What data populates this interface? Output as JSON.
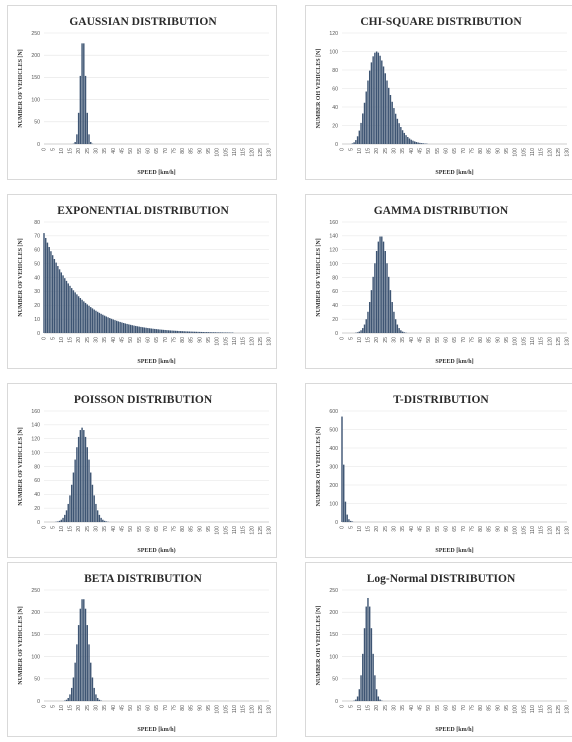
{
  "chart_data": [
    {
      "type": "bar",
      "title": "GAUSSIAN DISTRIBUTION",
      "xlabel": "SPEED [km/h]",
      "ylabel": "NUMBER OF VEHICLES [N]",
      "ylim": [
        0,
        250
      ],
      "yticks": [
        0,
        50,
        100,
        150,
        200,
        250
      ],
      "x_min": 0,
      "x_max": 130,
      "x_ticks": [
        "0",
        "5",
        "10",
        "15",
        "20",
        "25",
        "30",
        "35",
        "40",
        "45",
        "50",
        "55",
        "60",
        "65",
        "70",
        "75",
        "80",
        "85",
        "90",
        "95",
        "100",
        "105",
        "110",
        "115",
        "120",
        "125",
        "130"
      ],
      "dist": {
        "kind": "gauss",
        "mu": 22.5,
        "sigma": 1.6,
        "peak": 238
      }
    },
    {
      "type": "bar",
      "title": "CHI-SQUARE DISTRIBUTION",
      "xlabel": "SPEED [km/h]",
      "ylabel": "NUMBER OH VEHICLES [N]",
      "ylim": [
        0,
        120
      ],
      "yticks": [
        0,
        20,
        40,
        60,
        80,
        100,
        120
      ],
      "x_min": 0,
      "x_max": 130,
      "x_ticks": [
        "0",
        "5",
        "10",
        "15",
        "20",
        "25",
        "30",
        "35",
        "40",
        "45",
        "50",
        "55",
        "60",
        "65",
        "70",
        "75",
        "80",
        "85",
        "90",
        "95",
        "100",
        "105",
        "110",
        "115",
        "120",
        "125",
        "130"
      ],
      "dist": {
        "kind": "chisq",
        "k": 22,
        "peak": 100
      }
    },
    {
      "type": "bar",
      "title": "EXPONENTIAL DISTRIBUTION",
      "xlabel": "SPEED [km/h]",
      "ylabel": "NUMBER OF VEHICLES [N]",
      "ylim": [
        0,
        80
      ],
      "yticks": [
        0,
        10,
        20,
        30,
        40,
        50,
        60,
        70,
        80
      ],
      "x_min": 0,
      "x_max": 130,
      "x_ticks": [
        "0",
        "5",
        "10",
        "15",
        "20",
        "25",
        "30",
        "35",
        "40",
        "45",
        "50",
        "55",
        "60",
        "65",
        "70",
        "75",
        "80",
        "85",
        "90",
        "95",
        "100",
        "105",
        "110",
        "115",
        "120",
        "125",
        "130"
      ],
      "dist": {
        "kind": "exp",
        "a": 72,
        "rate": 0.05
      }
    },
    {
      "type": "bar",
      "title": "GAMMA DISTRIBUTION",
      "xlabel": "SPEED [km/h]",
      "ylabel": "NUMBER OF VEHICLES [N]",
      "ylim": [
        0,
        160
      ],
      "yticks": [
        0,
        20,
        40,
        60,
        80,
        100,
        120,
        140,
        160
      ],
      "x_min": 0,
      "x_max": 130,
      "x_ticks": [
        "0",
        "5",
        "10",
        "15",
        "20",
        "25",
        "30",
        "35",
        "40",
        "45",
        "50",
        "55",
        "60",
        "65",
        "70",
        "75",
        "80",
        "85",
        "90",
        "95",
        "100",
        "105",
        "110",
        "115",
        "120",
        "125",
        "130"
      ],
      "dist": {
        "kind": "gauss",
        "mu": 22.5,
        "sigma": 4.3,
        "peak": 140
      }
    },
    {
      "type": "bar",
      "title": "POISSON DISTRIBUTION",
      "xlabel": "SPEED (km/h)",
      "ylabel": "NUMBER OF VEHICLES [N]",
      "ylim": [
        0,
        160
      ],
      "yticks": [
        0,
        20,
        40,
        60,
        80,
        100,
        120,
        140,
        160
      ],
      "x_min": 0,
      "x_max": 130,
      "x_ticks": [
        "0",
        "5",
        "10",
        "15",
        "20",
        "25",
        "30",
        "35",
        "40",
        "45",
        "50",
        "55",
        "60",
        "65",
        "70",
        "75",
        "80",
        "85",
        "90",
        "95",
        "100",
        "105",
        "110",
        "115",
        "120",
        "125",
        "130"
      ],
      "dist": {
        "kind": "gauss",
        "mu": 22,
        "sigma": 4.4,
        "peak": 136
      }
    },
    {
      "type": "bar",
      "title": "T-DISTRIBUTION",
      "xlabel": "SPEED [km/h]",
      "ylabel": "NUMBER OH VEHICLES [N]",
      "ylim": [
        0,
        600
      ],
      "yticks": [
        0,
        100,
        200,
        300,
        400,
        500,
        600
      ],
      "x_min": 0,
      "x_max": 130,
      "x_ticks": [
        "0",
        "5",
        "10",
        "15",
        "20",
        "25",
        "30",
        "35",
        "40",
        "45",
        "50",
        "55",
        "60",
        "65",
        "70",
        "75",
        "80",
        "85",
        "90",
        "95",
        "100",
        "105",
        "110",
        "115",
        "120",
        "125",
        "130"
      ],
      "dist": {
        "kind": "points",
        "values": [
          [
            0,
            570
          ],
          [
            1,
            310
          ],
          [
            2,
            110
          ],
          [
            3,
            40
          ],
          [
            4,
            15
          ],
          [
            5,
            6
          ],
          [
            6,
            3
          ],
          [
            7,
            1
          ]
        ]
      }
    },
    {
      "type": "bar",
      "title": "BETA DISTRIBUTION",
      "xlabel": "SPEED [km/h]",
      "ylabel": "NUMBER OF VEHICLES [N]",
      "ylim": [
        0,
        250
      ],
      "yticks": [
        0,
        50,
        100,
        150,
        200,
        250
      ],
      "x_min": 0,
      "x_max": 130,
      "x_ticks": [
        "0",
        "5",
        "10",
        "15",
        "20",
        "25",
        "30",
        "35",
        "40",
        "45",
        "50",
        "55",
        "60",
        "65",
        "70",
        "75",
        "80",
        "85",
        "90",
        "95",
        "100",
        "105",
        "110",
        "115",
        "120",
        "125",
        "130"
      ],
      "dist": {
        "kind": "gauss",
        "mu": 22.5,
        "sigma": 3.2,
        "peak": 232
      }
    },
    {
      "type": "bar",
      "title": "Log-Normal DISTRIBUTION",
      "xlabel": "SPEED [km/h]",
      "ylabel": "NUMBER OH VEHICLES [N]",
      "ylim": [
        0,
        250
      ],
      "yticks": [
        0,
        50,
        100,
        150,
        200,
        250
      ],
      "x_min": 0,
      "x_max": 130,
      "x_ticks": [
        "0",
        "5",
        "10",
        "15",
        "20",
        "25",
        "30",
        "35",
        "40",
        "45",
        "50",
        "55",
        "60",
        "65",
        "70",
        "75",
        "80",
        "85",
        "90",
        "95",
        "100",
        "105",
        "110",
        "115",
        "120",
        "125",
        "130"
      ],
      "dist": {
        "kind": "gauss",
        "mu": 15,
        "sigma": 2.4,
        "peak": 232
      }
    }
  ]
}
